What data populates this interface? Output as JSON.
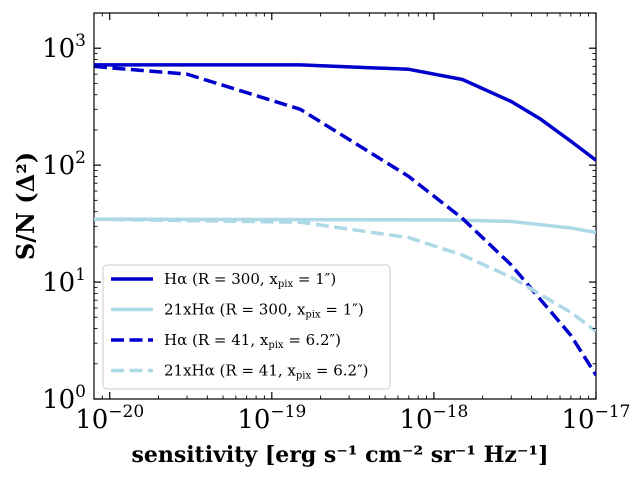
{
  "chart_data": {
    "type": "line",
    "title": "",
    "xlabel": "sensitivity [erg s⁻¹ cm⁻² sr⁻¹ Hz⁻¹]",
    "ylabel": "S/N (Δ²)",
    "xscale": "log",
    "yscale": "log",
    "xlim": [
      8e-21,
      1e-17
    ],
    "ylim": [
      1,
      2000
    ],
    "xticks": [
      {
        "value": 1e-20,
        "base": "10",
        "exp": "−20"
      },
      {
        "value": 1e-19,
        "base": "10",
        "exp": "−19"
      },
      {
        "value": 1e-18,
        "base": "10",
        "exp": "−18"
      },
      {
        "value": 1e-17,
        "base": "10",
        "exp": "−17"
      }
    ],
    "yticks": [
      {
        "value": 1,
        "base": "10",
        "exp": "0"
      },
      {
        "value": 10,
        "base": "10",
        "exp": "1"
      },
      {
        "value": 100,
        "base": "10",
        "exp": "2"
      },
      {
        "value": 1000,
        "base": "10",
        "exp": "3"
      }
    ],
    "grid": false,
    "legend_position": "lower-left",
    "series": [
      {
        "name": "Hα (R = 300, x",
        "sub": "pix",
        "tail": " = 1″)",
        "color": "#0000cd",
        "style": "solid",
        "x": [
          8e-21,
          1e-20,
          1.5e-19,
          7e-19,
          1.5e-18,
          3e-18,
          4.5e-18,
          7e-18,
          1e-17
        ],
        "y": [
          720,
          720,
          720,
          660,
          540,
          350,
          250,
          160,
          110
        ]
      },
      {
        "name": "21xHα (R = 300, x",
        "sub": "pix",
        "tail": " = 1″)",
        "color": "#add8e6",
        "style": "solid",
        "x": [
          8e-21,
          1e-20,
          1.5e-19,
          1e-18,
          1.5e-18,
          3e-18,
          7e-18,
          1e-17
        ],
        "y": [
          34.5,
          34.5,
          34.2,
          34,
          33.8,
          33,
          29,
          26.5
        ]
      },
      {
        "name": "Hα (R = 41, x",
        "sub": "pix",
        "tail": " = 6.2″)",
        "color": "#0000cd",
        "style": "dashed",
        "x": [
          8e-21,
          1e-20,
          3e-20,
          1.5e-19,
          7e-19,
          1.5e-18,
          3e-18,
          7e-18,
          1e-17
        ],
        "y": [
          700,
          680,
          600,
          300,
          80,
          35,
          14,
          3.5,
          1.6
        ]
      },
      {
        "name": "21xHα (R = 41, x",
        "sub": "pix",
        "tail": " = 6.2″)",
        "color": "#add8e6",
        "style": "dashed",
        "x": [
          8e-21,
          1e-20,
          1.5e-19,
          7e-19,
          1.5e-18,
          3e-18,
          7e-18,
          1e-17
        ],
        "y": [
          34.5,
          34.3,
          32.5,
          24,
          17,
          11,
          5.5,
          3.8
        ]
      }
    ]
  }
}
